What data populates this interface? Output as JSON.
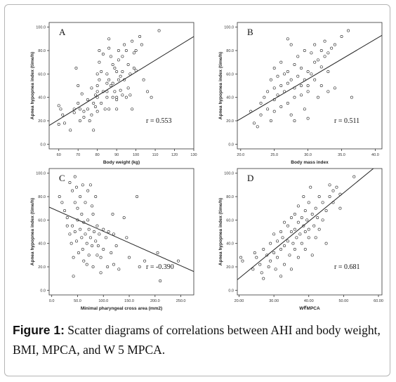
{
  "caption": {
    "label": "Figure 1:",
    "text": " Scatter diagrams of correlations between AHI and body weight, BMI, MPCA, and W 5 MPCA."
  },
  "colors": {
    "point": "#222222",
    "line": "#222222",
    "axis": "#333333",
    "frame": "#b5b5b5"
  },
  "chart_data": [
    {
      "type": "scatter",
      "panel_label": "A",
      "xlabel": "Body weight (kg)",
      "ylabel": "Apnea hypopnea index (time/h)",
      "xlim": [
        55,
        130
      ],
      "ylim": [
        -4,
        104
      ],
      "xticks": [
        60,
        70,
        80,
        90,
        100,
        110,
        120,
        130
      ],
      "xtick_labels": [
        "60",
        "70",
        "80",
        "90",
        "100",
        "110",
        "120",
        "130"
      ],
      "yticks": [
        0,
        20,
        40,
        60,
        80,
        100
      ],
      "ytick_labels": [
        "0.0",
        "20.0",
        "40.0",
        "60.0",
        "80.0",
        "100.0"
      ],
      "annotation": "r = 0.553",
      "fit_line": [
        [
          55,
          16
        ],
        [
          130,
          92
        ]
      ],
      "points": [
        [
          60,
          33
        ],
        [
          60,
          17
        ],
        [
          61,
          30
        ],
        [
          62,
          25
        ],
        [
          63,
          18
        ],
        [
          66,
          12
        ],
        [
          68,
          30
        ],
        [
          68,
          27
        ],
        [
          69,
          65
        ],
        [
          70,
          50
        ],
        [
          70,
          35
        ],
        [
          71,
          30
        ],
        [
          71,
          20
        ],
        [
          72,
          43
        ],
        [
          73,
          28
        ],
        [
          73,
          23
        ],
        [
          75,
          38
        ],
        [
          75,
          30
        ],
        [
          76,
          20
        ],
        [
          77,
          48
        ],
        [
          77,
          25
        ],
        [
          78,
          35
        ],
        [
          78,
          12
        ],
        [
          79,
          42
        ],
        [
          79,
          32
        ],
        [
          80,
          60
        ],
        [
          80,
          50
        ],
        [
          80,
          45
        ],
        [
          80,
          40
        ],
        [
          80,
          28
        ],
        [
          81,
          80
        ],
        [
          81,
          70
        ],
        [
          81,
          55
        ],
        [
          82,
          62
        ],
        [
          82,
          35
        ],
        [
          83,
          77
        ],
        [
          83,
          45
        ],
        [
          84,
          30
        ],
        [
          85,
          60
        ],
        [
          85,
          52
        ],
        [
          85,
          45
        ],
        [
          85,
          40
        ],
        [
          86,
          82
        ],
        [
          86,
          90
        ],
        [
          86,
          55
        ],
        [
          86,
          30
        ],
        [
          87,
          75
        ],
        [
          87,
          50
        ],
        [
          88,
          68
        ],
        [
          88,
          52
        ],
        [
          88,
          40
        ],
        [
          89,
          65
        ],
        [
          89,
          45
        ],
        [
          90,
          62
        ],
        [
          90,
          40
        ],
        [
          90,
          38
        ],
        [
          90,
          30
        ],
        [
          91,
          80
        ],
        [
          91,
          72
        ],
        [
          91,
          55
        ],
        [
          92,
          58
        ],
        [
          92,
          46
        ],
        [
          93,
          75
        ],
        [
          93,
          62
        ],
        [
          93,
          42
        ],
        [
          94,
          85
        ],
        [
          94,
          55
        ],
        [
          95,
          80
        ],
        [
          95,
          40
        ],
        [
          96,
          68
        ],
        [
          96,
          48
        ],
        [
          97,
          60
        ],
        [
          97,
          42
        ],
        [
          98,
          88
        ],
        [
          98,
          30
        ],
        [
          99,
          78
        ],
        [
          99,
          65
        ],
        [
          100,
          80
        ],
        [
          100,
          63
        ],
        [
          102,
          92
        ],
        [
          103,
          85
        ],
        [
          104,
          55
        ],
        [
          106,
          45
        ],
        [
          108,
          40
        ],
        [
          112,
          97
        ]
      ]
    },
    {
      "type": "scatter",
      "panel_label": "B",
      "xlabel": "Body mass index",
      "ylabel": "Apnea hypopnea index (time/h)",
      "xlim": [
        19.5,
        41
      ],
      "ylim": [
        -4,
        104
      ],
      "xticks": [
        20,
        25,
        30,
        35,
        40
      ],
      "xtick_labels": [
        "20.0",
        "25.0",
        "30.0",
        "35.0",
        "40.0"
      ],
      "yticks": [
        0,
        20,
        40,
        60,
        80,
        100
      ],
      "ytick_labels": [
        "0.0",
        "20.0",
        "40.0",
        "60.0",
        "80.0",
        "100.0"
      ],
      "annotation": "r = 0.511",
      "fit_line": [
        [
          19.5,
          20
        ],
        [
          41,
          93
        ]
      ],
      "points": [
        [
          21.5,
          28
        ],
        [
          22,
          18
        ],
        [
          22.5,
          15
        ],
        [
          23,
          35
        ],
        [
          23,
          25
        ],
        [
          23.5,
          40
        ],
        [
          24,
          45
        ],
        [
          24,
          30
        ],
        [
          24.5,
          55
        ],
        [
          24.5,
          20
        ],
        [
          25,
          65
        ],
        [
          25,
          48
        ],
        [
          25,
          38
        ],
        [
          25,
          28
        ],
        [
          25.5,
          58
        ],
        [
          25.5,
          42
        ],
        [
          26,
          70
        ],
        [
          26,
          50
        ],
        [
          26,
          32
        ],
        [
          26.5,
          60
        ],
        [
          26.5,
          45
        ],
        [
          27,
          90
        ],
        [
          27,
          62
        ],
        [
          27,
          52
        ],
        [
          27,
          35
        ],
        [
          27.5,
          85
        ],
        [
          27.5,
          55
        ],
        [
          27.5,
          25
        ],
        [
          28,
          68
        ],
        [
          28,
          48
        ],
        [
          28,
          40
        ],
        [
          28,
          20
        ],
        [
          28.5,
          75
        ],
        [
          28.5,
          58
        ],
        [
          29,
          65
        ],
        [
          29,
          50
        ],
        [
          29,
          42
        ],
        [
          29.5,
          80
        ],
        [
          29.5,
          55
        ],
        [
          29.5,
          30
        ],
        [
          30,
          62
        ],
        [
          30,
          50
        ],
        [
          30,
          45
        ],
        [
          30,
          22
        ],
        [
          30.5,
          78
        ],
        [
          30.5,
          60
        ],
        [
          31,
          85
        ],
        [
          31,
          70
        ],
        [
          31,
          55
        ],
        [
          31.5,
          72
        ],
        [
          31.5,
          40
        ],
        [
          32,
          80
        ],
        [
          32,
          66
        ],
        [
          32,
          50
        ],
        [
          32.5,
          88
        ],
        [
          32.5,
          75
        ],
        [
          33,
          78
        ],
        [
          33,
          62
        ],
        [
          33,
          45
        ],
        [
          33.5,
          82
        ],
        [
          34,
          85
        ],
        [
          34,
          48
        ],
        [
          35,
          92
        ],
        [
          36,
          97
        ],
        [
          36.5,
          40
        ]
      ]
    },
    {
      "type": "scatter",
      "panel_label": "C",
      "xlabel": "Minimal pharyngeal cross area (mm2)",
      "ylabel": "Apnea hypopnea index (time/h)",
      "xlim": [
        -5,
        275
      ],
      "ylim": [
        -4,
        104
      ],
      "xticks": [
        0,
        50,
        100,
        150,
        200,
        250
      ],
      "xtick_labels": [
        "0.0",
        "50.0",
        "100.0",
        "150.0",
        "200.0",
        "250.0"
      ],
      "yticks": [
        0,
        20,
        40,
        60,
        80,
        100
      ],
      "ytick_labels": [
        "0.0",
        "20.0",
        "40.0",
        "60.0",
        "80.0",
        "100.0"
      ],
      "annotation": "r = -0.390",
      "fit_line": [
        [
          -5,
          71
        ],
        [
          275,
          16
        ]
      ],
      "points": [
        [
          15,
          80
        ],
        [
          20,
          75
        ],
        [
          25,
          68
        ],
        [
          30,
          62
        ],
        [
          30,
          55
        ],
        [
          35,
          92
        ],
        [
          35,
          48
        ],
        [
          38,
          40
        ],
        [
          40,
          85
        ],
        [
          40,
          55
        ],
        [
          42,
          28
        ],
        [
          42,
          12
        ],
        [
          45,
          97
        ],
        [
          45,
          75
        ],
        [
          45,
          50
        ],
        [
          48,
          88
        ],
        [
          48,
          42
        ],
        [
          50,
          70
        ],
        [
          50,
          60
        ],
        [
          52,
          32
        ],
        [
          55,
          80
        ],
        [
          55,
          52
        ],
        [
          58,
          65
        ],
        [
          58,
          45
        ],
        [
          60,
          90
        ],
        [
          60,
          35
        ],
        [
          62,
          58
        ],
        [
          62,
          25
        ],
        [
          65,
          75
        ],
        [
          65,
          48
        ],
        [
          68,
          40
        ],
        [
          68,
          22
        ],
        [
          70,
          85
        ],
        [
          70,
          60
        ],
        [
          72,
          52
        ],
        [
          72,
          30
        ],
        [
          75,
          90
        ],
        [
          75,
          45
        ],
        [
          78,
          72
        ],
        [
          78,
          38
        ],
        [
          80,
          65
        ],
        [
          80,
          20
        ],
        [
          82,
          50
        ],
        [
          85,
          80
        ],
        [
          85,
          42
        ],
        [
          88,
          55
        ],
        [
          88,
          30
        ],
        [
          90,
          38
        ],
        [
          92,
          48
        ],
        [
          95,
          28
        ],
        [
          95,
          15
        ],
        [
          100,
          52
        ],
        [
          100,
          35
        ],
        [
          105,
          45
        ],
        [
          108,
          20
        ],
        [
          110,
          50
        ],
        [
          115,
          32
        ],
        [
          118,
          65
        ],
        [
          120,
          48
        ],
        [
          120,
          22
        ],
        [
          125,
          38
        ],
        [
          130,
          18
        ],
        [
          140,
          62
        ],
        [
          145,
          45
        ],
        [
          150,
          28
        ],
        [
          165,
          80
        ],
        [
          170,
          20
        ],
        [
          180,
          25
        ],
        [
          205,
          32
        ],
        [
          210,
          8
        ],
        [
          245,
          25
        ]
      ]
    },
    {
      "type": "scatter",
      "panel_label": "D",
      "xlabel": "W∜MPCA",
      "ylabel": "Apnea hypopnea index (time/h)",
      "xlim": [
        19.5,
        61
      ],
      "ylim": [
        -4,
        104
      ],
      "xticks": [
        20,
        30,
        40,
        50,
        60
      ],
      "xtick_labels": [
        "20.00",
        "30.00",
        "40.00",
        "50.00",
        "60.00"
      ],
      "yticks": [
        0,
        20,
        40,
        60,
        80,
        100
      ],
      "ytick_labels": [
        "0.0",
        "20.0",
        "40.0",
        "60.0",
        "80.0",
        "100.0"
      ],
      "annotation": "r = 0.681",
      "fit_line": [
        [
          19.5,
          9
        ],
        [
          61,
          110
        ]
      ],
      "points": [
        [
          20.5,
          28
        ],
        [
          21,
          25
        ],
        [
          24,
          18
        ],
        [
          24.5,
          32
        ],
        [
          25,
          28
        ],
        [
          26,
          22
        ],
        [
          26.5,
          15
        ],
        [
          27,
          10
        ],
        [
          27,
          35
        ],
        [
          28,
          30
        ],
        [
          28.5,
          20
        ],
        [
          29,
          40
        ],
        [
          29,
          25
        ],
        [
          30,
          48
        ],
        [
          30,
          32
        ],
        [
          30.5,
          18
        ],
        [
          31,
          42
        ],
        [
          31,
          28
        ],
        [
          32,
          50
        ],
        [
          32,
          35
        ],
        [
          32,
          12
        ],
        [
          32.5,
          45
        ],
        [
          33,
          58
        ],
        [
          33,
          38
        ],
        [
          33,
          22
        ],
        [
          34,
          55
        ],
        [
          34,
          42
        ],
        [
          34.5,
          30
        ],
        [
          35,
          62
        ],
        [
          35,
          50
        ],
        [
          35,
          18
        ],
        [
          35.5,
          40
        ],
        [
          36,
          65
        ],
        [
          36,
          52
        ],
        [
          36,
          35
        ],
        [
          36.5,
          45
        ],
        [
          37,
          72
        ],
        [
          37,
          58
        ],
        [
          37,
          28
        ],
        [
          37.5,
          48
        ],
        [
          38,
          62
        ],
        [
          38,
          40
        ],
        [
          38.5,
          80
        ],
        [
          38.5,
          55
        ],
        [
          39,
          68
        ],
        [
          39,
          50
        ],
        [
          39,
          35
        ],
        [
          39.5,
          60
        ],
        [
          40,
          75
        ],
        [
          40,
          52
        ],
        [
          40,
          45
        ],
        [
          40.5,
          88
        ],
        [
          41,
          65
        ],
        [
          41,
          30
        ],
        [
          41.5,
          55
        ],
        [
          42,
          70
        ],
        [
          42,
          45
        ],
        [
          42.5,
          62
        ],
        [
          43,
          80
        ],
        [
          43,
          52
        ],
        [
          44,
          75
        ],
        [
          44,
          60
        ],
        [
          45,
          68
        ],
        [
          45,
          40
        ],
        [
          46,
          90
        ],
        [
          46,
          80
        ],
        [
          47,
          85
        ],
        [
          47,
          75
        ],
        [
          48,
          88
        ],
        [
          49,
          82
        ],
        [
          49,
          70
        ],
        [
          53,
          97
        ]
      ]
    }
  ]
}
